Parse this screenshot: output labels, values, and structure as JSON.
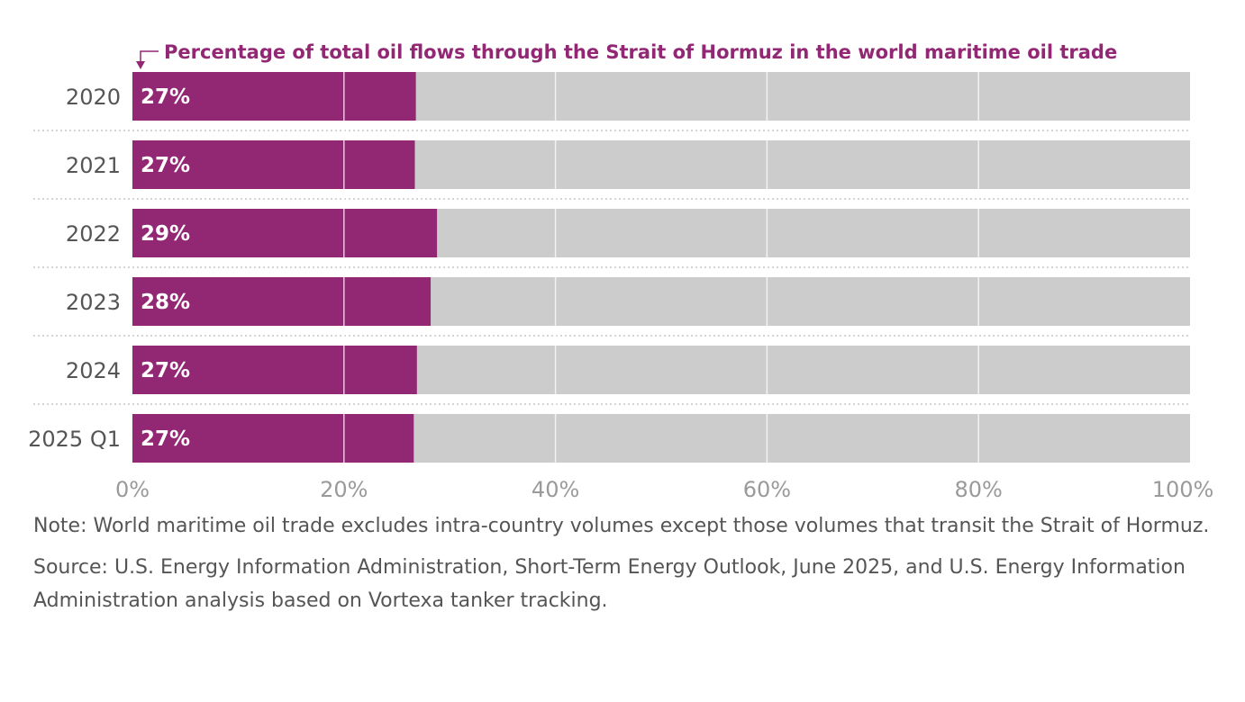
{
  "colors": {
    "bar": "#922774",
    "track": "#cccccc",
    "title": "#922774",
    "grid": "#ffffff",
    "separator": "#bbbbbb"
  },
  "chart_data": {
    "type": "bar",
    "orientation": "horizontal",
    "series_title": "Percentage of total oil flows through the Strait of Hormuz in the world maritime oil trade",
    "categories": [
      "2020",
      "2021",
      "2022",
      "2023",
      "2024",
      "2025 Q1"
    ],
    "values": [
      26.8,
      26.7,
      28.8,
      28.2,
      26.9,
      26.6
    ],
    "value_labels": [
      "27%",
      "27%",
      "29%",
      "28%",
      "27%",
      "27%"
    ],
    "xlim": [
      0,
      100
    ],
    "xticks": [
      0,
      20,
      40,
      60,
      80,
      100
    ],
    "xtick_labels": [
      "0%",
      "20%",
      "40%",
      "60%",
      "80%",
      "100%"
    ],
    "grid": true,
    "background_track": true
  },
  "footnotes": {
    "note": "Note: World maritime oil trade excludes intra-country volumes except those volumes that transit the Strait of Hormuz.",
    "source": "Source: U.S. Energy Information Administration, Short-Term Energy Outlook, June 2025, and U.S. Energy Information Administration analysis based on Vortexa tanker tracking."
  }
}
